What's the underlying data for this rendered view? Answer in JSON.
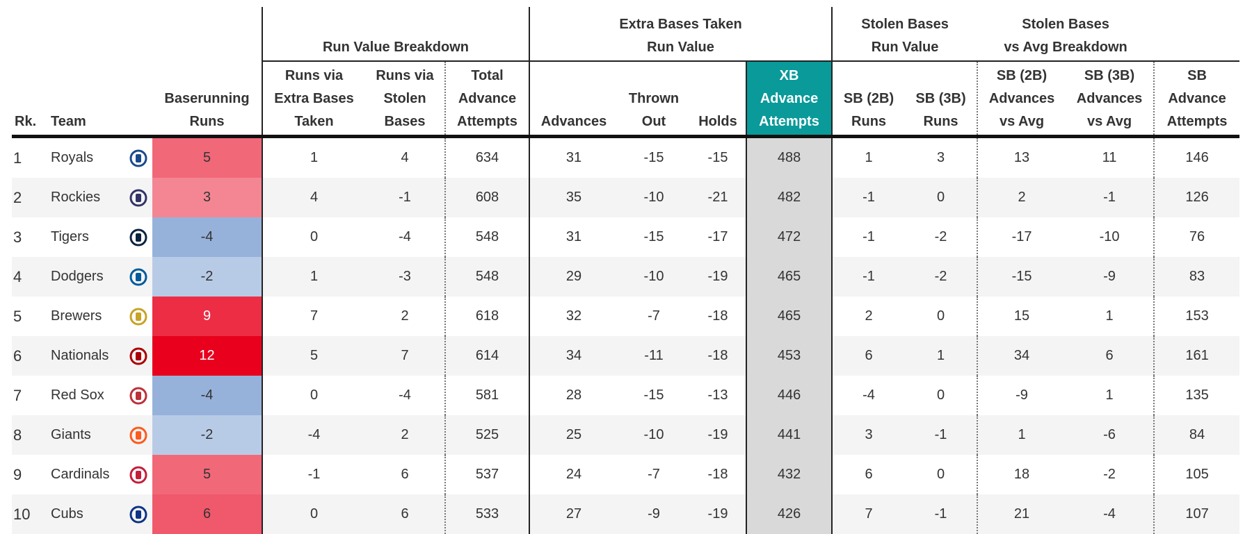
{
  "group_headers": [
    "Run Value Breakdown",
    "Extra Bases Taken\nRun Value",
    "Stolen Bases\nRun Value",
    "Stolen Bases\nvs Avg Breakdown"
  ],
  "columns": [
    "Rk.",
    "Team",
    "Baserunning\nRuns",
    "Runs via\nExtra Bases\nTaken",
    "Runs via\nStolen\nBases",
    "Total\nAdvance\nAttempts",
    "Advances",
    "Thrown\nOut",
    "Holds",
    "XB\nAdvance\nAttempts",
    "SB (2B)\nRuns",
    "SB (3B)\nRuns",
    "SB (2B)\nAdvances\nvs Avg",
    "SB (3B)\nAdvances\nvs Avg",
    "SB\nAdvance\nAttempts"
  ],
  "rows": [
    [
      1,
      "Royals",
      5,
      1,
      4,
      634,
      31,
      -15,
      -15,
      488,
      1,
      3,
      13,
      11,
      146
    ],
    [
      2,
      "Rockies",
      3,
      4,
      -1,
      608,
      35,
      -10,
      -21,
      482,
      -1,
      0,
      2,
      -1,
      126
    ],
    [
      3,
      "Tigers",
      -4,
      0,
      -4,
      548,
      31,
      -15,
      -17,
      472,
      -1,
      -2,
      -17,
      -10,
      76
    ],
    [
      4,
      "Dodgers",
      -2,
      1,
      -3,
      548,
      29,
      -10,
      -19,
      465,
      -1,
      -2,
      -15,
      -9,
      83
    ],
    [
      5,
      "Brewers",
      9,
      7,
      2,
      618,
      32,
      -7,
      -18,
      465,
      2,
      0,
      15,
      1,
      153
    ],
    [
      6,
      "Nationals",
      12,
      5,
      7,
      614,
      34,
      -11,
      -18,
      453,
      6,
      1,
      34,
      6,
      161
    ],
    [
      7,
      "Red Sox",
      -4,
      0,
      -4,
      581,
      28,
      -15,
      -13,
      446,
      -4,
      0,
      -9,
      1,
      135
    ],
    [
      8,
      "Giants",
      -2,
      -4,
      2,
      525,
      25,
      -10,
      -19,
      441,
      3,
      -1,
      1,
      -6,
      84
    ],
    [
      9,
      "Cardinals",
      5,
      -1,
      6,
      537,
      24,
      -7,
      -18,
      432,
      6,
      0,
      18,
      -2,
      105
    ],
    [
      10,
      "Cubs",
      6,
      0,
      6,
      533,
      27,
      -9,
      -19,
      426,
      7,
      -1,
      21,
      -4,
      107
    ]
  ]
}
